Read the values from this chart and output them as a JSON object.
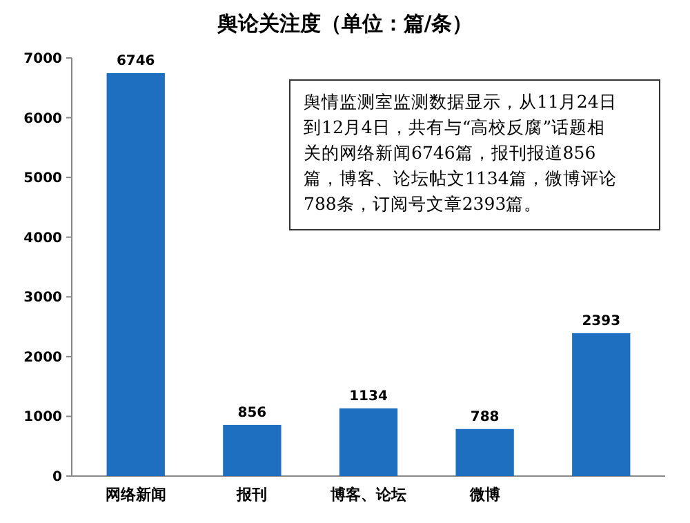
{
  "chart_data": {
    "type": "bar",
    "title": "舆论关注度（单位：篇/条）",
    "categories": [
      "网络新闻",
      "报刊",
      "博客、论坛",
      "微博",
      null
    ],
    "values": [
      6746,
      856,
      1134,
      788,
      2393
    ],
    "color": "#1f6fc0",
    "ylim": [
      0,
      7000
    ],
    "yticks": [
      0,
      1000,
      2000,
      3000,
      4000,
      5000,
      6000,
      7000
    ],
    "grid": false,
    "data_labels": true,
    "annotations": [
      "舆情监测室监测数据显示，从11月24日到12月4日，共有与“高校反腐”话题相关的网络新闻6746篇，报刊报道856篇，博客、论坛帖文1134篇，微博评论788条，订阅号文章2393篇。"
    ]
  }
}
